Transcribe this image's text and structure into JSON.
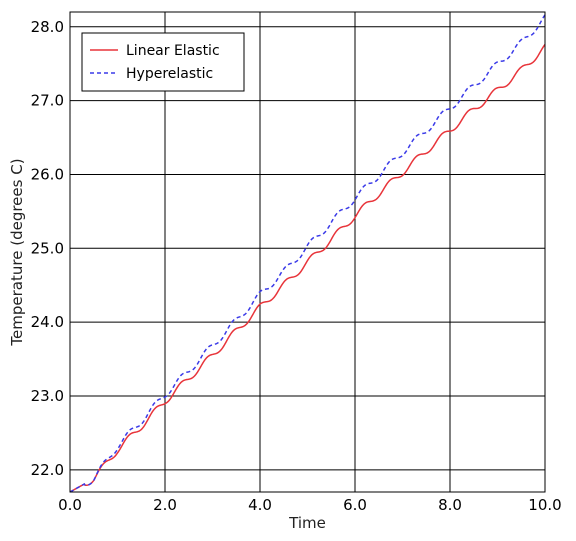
{
  "chart_data": {
    "type": "line",
    "xlabel": "Time",
    "ylabel": "Temperature (degrees C)",
    "xlim": [
      0,
      10
    ],
    "ylim": [
      21.7,
      28.2
    ],
    "xticks": [
      0,
      2,
      4,
      6,
      8,
      10
    ],
    "xtick_labels": [
      "0.0",
      "2.0",
      "4.0",
      "6.0",
      "8.0",
      "10.0"
    ],
    "yticks": [
      22,
      23,
      24,
      25,
      26,
      27,
      28
    ],
    "ytick_labels": [
      "22.0",
      "23.0",
      "24.0",
      "25.0",
      "26.0",
      "27.0",
      "28.0"
    ],
    "grid": true,
    "legend_position": "top-left",
    "series": [
      {
        "name": "Linear Elastic",
        "color": "#e8343a",
        "style": "solid",
        "x": [
          0.0,
          0.5,
          1.0,
          1.5,
          2.0,
          2.5,
          3.0,
          3.5,
          4.0,
          4.5,
          5.0,
          5.5,
          6.0,
          6.5,
          7.0,
          7.5,
          8.0,
          8.5,
          9.0,
          9.5,
          10.0
        ],
        "y": [
          21.7,
          21.88,
          22.27,
          22.59,
          22.93,
          23.24,
          23.55,
          23.88,
          24.2,
          24.5,
          24.81,
          25.12,
          25.44,
          25.74,
          26.03,
          26.32,
          26.6,
          26.88,
          27.14,
          27.41,
          27.72
        ]
      },
      {
        "name": "Hyperelastic",
        "color": "#3a3ae8",
        "style": "dashed",
        "x": [
          0.0,
          0.5,
          1.0,
          1.5,
          2.0,
          2.5,
          3.0,
          3.5,
          4.0,
          4.5,
          5.0,
          5.5,
          6.0,
          6.5,
          7.0,
          7.5,
          8.0,
          8.5,
          9.0,
          9.5,
          10.0
        ],
        "y": [
          21.7,
          21.88,
          22.32,
          22.66,
          23.02,
          23.34,
          23.68,
          24.02,
          24.37,
          24.68,
          25.02,
          25.35,
          25.68,
          25.99,
          26.3,
          26.6,
          26.9,
          27.2,
          27.49,
          27.78,
          28.12
        ]
      }
    ]
  }
}
